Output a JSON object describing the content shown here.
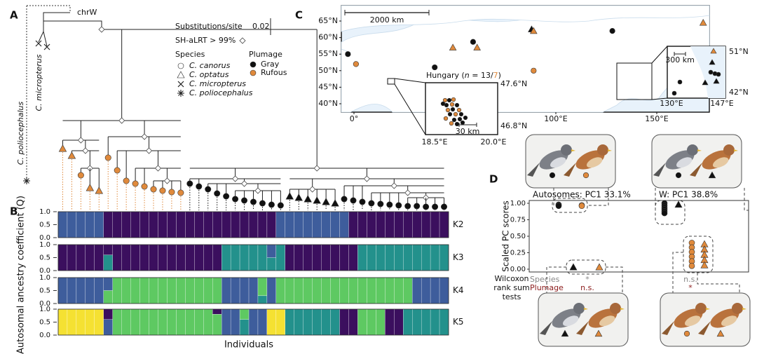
{
  "panel_a": {
    "label": "A",
    "outgroup": "chrW",
    "scale_label": "Substitutions/site",
    "scale_value": "0.02",
    "support": "SH-aLRT > 99%",
    "species_title": "Species",
    "species": [
      "C. canorus",
      "C. optatus",
      "C. micropterus",
      "C. poliocephalus"
    ],
    "plumage_title": "Plumage",
    "plumage": [
      "Gray",
      "Rufous"
    ],
    "clade_labels": [
      "C. micropterus",
      "C. poliocephalus"
    ]
  },
  "panel_b": {
    "label": "B",
    "ylabel": "Autosomal ancestry coefficient (Q)",
    "xlabel": "Individuals",
    "yticks": [
      {
        "value": 1,
        "label": "1.0"
      },
      {
        "value": 0.5,
        "label": "0.5"
      },
      {
        "value": 0,
        "label": "0.0"
      }
    ],
    "rows": [
      {
        "name": "K2",
        "segments": [
          {
            "n": 5,
            "q": [
              1
            ],
            "colors": [
              "#3e5d9c"
            ]
          },
          {
            "n": 19,
            "q": [
              1
            ],
            "colors": [
              "#3b0f5e"
            ]
          },
          {
            "n": 8,
            "q": [
              1
            ],
            "colors": [
              "#3e5d9c"
            ]
          },
          {
            "n": 11,
            "q": [
              1
            ],
            "colors": [
              "#3b0f5e"
            ]
          }
        ]
      },
      {
        "name": "K3",
        "segments": [
          {
            "n": 5,
            "q": [
              1
            ],
            "colors": [
              "#3b0f5e"
            ]
          },
          {
            "n": 1,
            "q": [
              0.4,
              0.6
            ],
            "colors": [
              "#3b0f5e",
              "#23918c"
            ]
          },
          {
            "n": 12,
            "q": [
              1
            ],
            "colors": [
              "#3b0f5e"
            ]
          },
          {
            "n": 5,
            "q": [
              1
            ],
            "colors": [
              "#23918c"
            ]
          },
          {
            "n": 1,
            "q": [
              0.5,
              0.5
            ],
            "colors": [
              "#3e5d9c",
              "#23918c"
            ]
          },
          {
            "n": 1,
            "q": [
              1
            ],
            "colors": [
              "#23918c"
            ]
          },
          {
            "n": 8,
            "q": [
              1
            ],
            "colors": [
              "#3b0f5e"
            ]
          },
          {
            "n": 10,
            "q": [
              1
            ],
            "colors": [
              "#23918c"
            ]
          }
        ]
      },
      {
        "name": "K4",
        "segments": [
          {
            "n": 5,
            "q": [
              1
            ],
            "colors": [
              "#3e5d9c"
            ]
          },
          {
            "n": 1,
            "q": [
              0.5,
              0.5
            ],
            "colors": [
              "#3e5d9c",
              "#5ec962"
            ]
          },
          {
            "n": 12,
            "q": [
              1
            ],
            "colors": [
              "#5ec962"
            ]
          },
          {
            "n": 4,
            "q": [
              1
            ],
            "colors": [
              "#3e5d9c"
            ]
          },
          {
            "n": 1,
            "q": [
              0.7,
              0.3
            ],
            "colors": [
              "#5ec962",
              "#23918c"
            ]
          },
          {
            "n": 1,
            "q": [
              1
            ],
            "colors": [
              "#3e5d9c"
            ]
          },
          {
            "n": 15,
            "q": [
              1
            ],
            "colors": [
              "#5ec962"
            ]
          },
          {
            "n": 4,
            "q": [
              1
            ],
            "colors": [
              "#3e5d9c"
            ]
          }
        ]
      },
      {
        "name": "K5",
        "segments": [
          {
            "n": 5,
            "q": [
              1
            ],
            "colors": [
              "#f5e132"
            ]
          },
          {
            "n": 1,
            "q": [
              0.4,
              0.6
            ],
            "colors": [
              "#3b0f5e",
              "#3e5d9c"
            ]
          },
          {
            "n": 11,
            "q": [
              1
            ],
            "colors": [
              "#5ec962"
            ]
          },
          {
            "n": 1,
            "q": [
              0.2,
              0.8
            ],
            "colors": [
              "#3b0f5e",
              "#5ec962"
            ]
          },
          {
            "n": 2,
            "q": [
              1
            ],
            "colors": [
              "#3e5d9c"
            ]
          },
          {
            "n": 1,
            "q": [
              0.4,
              0.6
            ],
            "colors": [
              "#5ec962",
              "#23918c"
            ]
          },
          {
            "n": 2,
            "q": [
              1
            ],
            "colors": [
              "#3e5d9c"
            ]
          },
          {
            "n": 2,
            "q": [
              1
            ],
            "colors": [
              "#f5e132"
            ]
          },
          {
            "n": 6,
            "q": [
              1
            ],
            "colors": [
              "#23918c"
            ]
          },
          {
            "n": 2,
            "q": [
              1
            ],
            "colors": [
              "#3b0f5e"
            ]
          },
          {
            "n": 3,
            "q": [
              1
            ],
            "colors": [
              "#5ec962"
            ]
          },
          {
            "n": 2,
            "q": [
              1
            ],
            "colors": [
              "#3b0f5e"
            ]
          },
          {
            "n": 5,
            "q": [
              1
            ],
            "colors": [
              "#23918c"
            ]
          }
        ]
      }
    ]
  },
  "panel_c": {
    "label": "C",
    "scalebar": "2000 km",
    "latticks": [
      {
        "value": 65,
        "label": "65°N"
      },
      {
        "value": 60,
        "label": "60°N"
      },
      {
        "value": 55,
        "label": "55°N"
      },
      {
        "value": 50,
        "label": "50°N"
      },
      {
        "value": 45,
        "label": "45°N"
      },
      {
        "value": 40,
        "label": "40°N"
      }
    ],
    "lonticks": [
      {
        "value": 0,
        "label": "0°"
      },
      {
        "value": 50,
        "label": "50°E"
      },
      {
        "value": 100,
        "label": "100°E"
      },
      {
        "value": 150,
        "label": "150°E"
      }
    ],
    "points": [
      {
        "lon": -3,
        "lat": 55,
        "shape": "circle",
        "color": "#111111"
      },
      {
        "lon": 1,
        "lat": 52,
        "shape": "circle",
        "color": "#e08a3c"
      },
      {
        "lon": 40,
        "lat": 51,
        "shape": "circle",
        "color": "#111111"
      },
      {
        "lon": 49,
        "lat": 57,
        "shape": "triangle",
        "color": "#e08a3c"
      },
      {
        "lon": 59,
        "lat": 58.7,
        "shape": "circle",
        "color": "#111111"
      },
      {
        "lon": 61,
        "lat": 57,
        "shape": "triangle",
        "color": "#e08a3c"
      },
      {
        "lon": 88,
        "lat": 62.5,
        "shape": "triangle",
        "color": "#111111"
      },
      {
        "lon": 89,
        "lat": 62,
        "shape": "triangle",
        "color": "#e08a3c"
      },
      {
        "lon": 89,
        "lat": 50,
        "shape": "circle",
        "color": "#e08a3c"
      },
      {
        "lon": 128,
        "lat": 62,
        "shape": "circle",
        "color": "#111111"
      },
      {
        "lon": 173,
        "lat": 64.5,
        "shape": "triangle",
        "color": "#e08a3c"
      }
    ],
    "hungary_label": [
      "Hungary (",
      "n",
      " = 13/",
      "7",
      ")"
    ],
    "hungary_ticks": [
      "47.6°N",
      "46.8°N",
      "18.5°E",
      "20.0°E"
    ],
    "hungary_scale": "30 km",
    "east_scale": "300 km",
    "east_ticks": [
      "51°N",
      "42°N",
      "130°E",
      "147°E"
    ]
  },
  "panel_d": {
    "label": "D",
    "ylabel": "Scaled PC scores",
    "ylim": [
      0,
      1
    ],
    "yticks": [
      {
        "value": 0,
        "label": "0.00"
      },
      {
        "value": 0.25,
        "label": "0.25"
      },
      {
        "value": 0.5,
        "label": "0.50"
      },
      {
        "value": 0.75,
        "label": "0.75"
      },
      {
        "value": 1,
        "label": "1.00"
      }
    ],
    "pc_labels": [
      "Autosomes: PC1 33.1%",
      "W: PC1 38.8%"
    ],
    "test_title": [
      "Wilcoxon",
      "rank sum",
      "tests"
    ],
    "tests": [
      "Species",
      "Plumage"
    ],
    "results": [
      [
        "*",
        "n.s."
      ],
      [
        "n.s.",
        "*"
      ]
    ],
    "groups": [
      {
        "shape": "circle",
        "color": "#111111",
        "values": [
          0.98,
          0.97,
          0.96
        ]
      },
      {
        "shape": "circle",
        "color": "#e08a3c",
        "values": [
          0.97,
          0.96
        ]
      },
      {
        "shape": "triangle",
        "color": "#111111",
        "values": [
          0.03
        ]
      },
      {
        "shape": "triangle",
        "color": "#e08a3c",
        "values": [
          0.03
        ]
      },
      {
        "shape": "circle",
        "color": "#111111",
        "values": [
          1,
          0.97,
          0.94,
          0.91,
          0.88,
          0.85
        ]
      },
      {
        "shape": "triangle",
        "color": "#111111",
        "values": [
          0.98
        ]
      },
      {
        "shape": "circle",
        "color": "#e08a3c",
        "values": [
          0.4,
          0.33,
          0.26,
          0.19,
          0.12,
          0.05
        ]
      },
      {
        "shape": "triangle",
        "color": "#e08a3c",
        "values": [
          0.38,
          0.3,
          0.22,
          0.14,
          0.06
        ]
      }
    ]
  }
}
